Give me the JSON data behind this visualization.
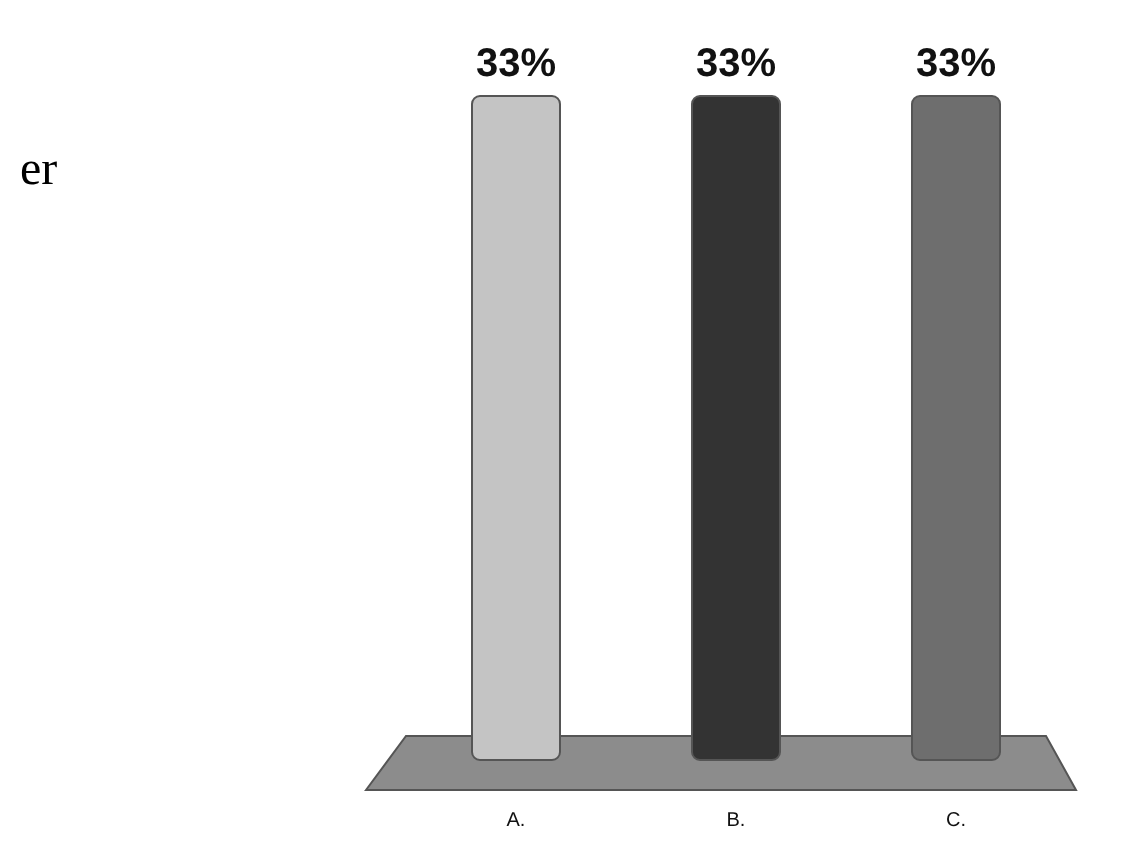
{
  "chart_data": {
    "type": "bar",
    "categories": [
      "A.",
      "B.",
      "C."
    ],
    "values": [
      33,
      33,
      33
    ],
    "colors": [
      "#c4c4c4",
      "#333333",
      "#6e6e6e"
    ],
    "value_labels": [
      "33%",
      "33%",
      "33%"
    ],
    "annotations": [
      "er"
    ]
  }
}
